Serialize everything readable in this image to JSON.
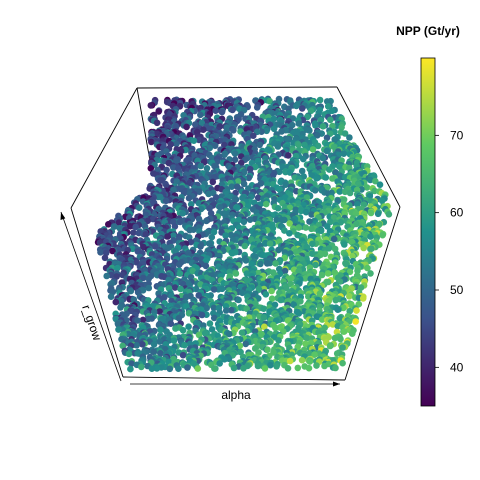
{
  "chart_data": {
    "type": "scatter",
    "subtype": "3d-scatter",
    "view": "oblique projection inside a box",
    "title": "",
    "xlabel": "alpha",
    "ylabel": "r_grow",
    "zlabel": "",
    "color_variable": "NPP (Gt/yr)",
    "colorbar": {
      "title": "NPP (Gt/yr)",
      "range": [
        35,
        80
      ],
      "ticks": [
        40,
        50,
        60,
        70
      ],
      "colormap": "viridis",
      "colors": [
        "#440154",
        "#3b528b",
        "#21918c",
        "#5ec962",
        "#fde725"
      ]
    },
    "point_count_approx": 4000,
    "point_summary": "Dense cloud of points filling the box; NPP rises toward the front-right (higher alpha, lower r_grow), with the highest values (about 70-80) clustered near the front-right and the lowest values (about 35-45) toward the back-left.",
    "grid": false,
    "legend_position": "right"
  }
}
